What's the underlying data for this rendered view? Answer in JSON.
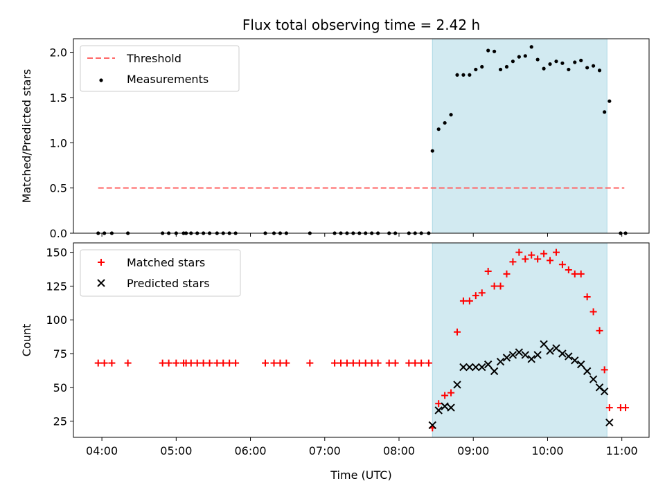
{
  "chart_data": [
    {
      "type": "scatter",
      "title": "Flux total observing time = 2.42 h",
      "xlabel": "",
      "ylabel": "Matched/Predicted stars",
      "xlim": [
        "03:37",
        "11:22"
      ],
      "ylim": [
        0,
        2.15
      ],
      "yticks": [
        0.0,
        0.5,
        1.0,
        1.5,
        2.0
      ],
      "ytick_labels": [
        "0.0",
        "0.5",
        "1.0",
        "1.5",
        "2.0"
      ],
      "shaded_span": {
        "x": [
          "08:27",
          "10:48"
        ],
        "color": "#add8e6"
      },
      "legend": {
        "position": "upper-left"
      },
      "series": [
        {
          "name": "Threshold",
          "kind": "dashed-line",
          "color": "#ff6666",
          "x": [
            "03:57",
            "11:02"
          ],
          "y": [
            0.5,
            0.5
          ]
        },
        {
          "name": "Measurements",
          "kind": "dots",
          "color": "#000000",
          "x": [
            "03:57",
            "04:02",
            "04:08",
            "04:21",
            "04:49",
            "04:54",
            "05:00",
            "05:06",
            "05:08",
            "05:12",
            "05:17",
            "05:22",
            "05:27",
            "05:33",
            "05:38",
            "05:43",
            "05:48",
            "06:12",
            "06:19",
            "06:24",
            "06:29",
            "06:48",
            "07:08",
            "07:13",
            "07:18",
            "07:23",
            "07:28",
            "07:33",
            "07:38",
            "07:43",
            "07:52",
            "07:57",
            "08:08",
            "08:13",
            "08:18",
            "08:24",
            "08:27",
            "08:32",
            "08:37",
            "08:42",
            "08:47",
            "08:52",
            "08:57",
            "09:02",
            "09:07",
            "09:12",
            "09:17",
            "09:22",
            "09:27",
            "09:32",
            "09:37",
            "09:42",
            "09:47",
            "09:52",
            "09:57",
            "10:02",
            "10:07",
            "10:12",
            "10:17",
            "10:22",
            "10:27",
            "10:32",
            "10:37",
            "10:42",
            "10:46",
            "10:50",
            "10:59",
            "11:03"
          ],
          "y": [
            0,
            0,
            0,
            0,
            0,
            0,
            0,
            0,
            0,
            0,
            0,
            0,
            0,
            0,
            0,
            0,
            0,
            0,
            0,
            0,
            0,
            0,
            0,
            0,
            0,
            0,
            0,
            0,
            0,
            0,
            0,
            0,
            0,
            0,
            0,
            0,
            0.91,
            1.15,
            1.22,
            1.31,
            1.75,
            1.75,
            1.75,
            1.81,
            1.84,
            2.02,
            2.01,
            1.81,
            1.84,
            1.9,
            1.95,
            1.96,
            2.06,
            1.92,
            1.82,
            1.87,
            1.9,
            1.88,
            1.81,
            1.89,
            1.91,
            1.83,
            1.85,
            1.8,
            1.34,
            1.46,
            0,
            0
          ]
        }
      ]
    },
    {
      "type": "scatter",
      "title": "",
      "xlabel": "Time (UTC)",
      "ylabel": "Count",
      "xlim": [
        "03:37",
        "11:22"
      ],
      "ylim": [
        13,
        157
      ],
      "yticks": [
        25,
        50,
        75,
        100,
        125,
        150
      ],
      "ytick_labels": [
        "25",
        "50",
        "75",
        "100",
        "125",
        "150"
      ],
      "xticks": [
        "04:00",
        "05:00",
        "06:00",
        "07:00",
        "08:00",
        "09:00",
        "10:00",
        "11:00"
      ],
      "xtick_labels": [
        "04:00",
        "05:00",
        "06:00",
        "07:00",
        "08:00",
        "09:00",
        "10:00",
        "11:00"
      ],
      "shaded_span": {
        "x": [
          "08:27",
          "10:48"
        ],
        "color": "#add8e6"
      },
      "legend": {
        "position": "upper-left"
      },
      "series": [
        {
          "name": "Matched stars",
          "marker": "+",
          "color": "#ff0000",
          "x": [
            "03:57",
            "04:02",
            "04:08",
            "04:21",
            "04:49",
            "04:54",
            "05:00",
            "05:06",
            "05:08",
            "05:12",
            "05:17",
            "05:22",
            "05:27",
            "05:33",
            "05:38",
            "05:43",
            "05:48",
            "06:12",
            "06:19",
            "06:24",
            "06:29",
            "06:48",
            "07:08",
            "07:13",
            "07:18",
            "07:23",
            "07:28",
            "07:33",
            "07:38",
            "07:43",
            "07:52",
            "07:57",
            "08:08",
            "08:13",
            "08:18",
            "08:24",
            "08:27",
            "08:32",
            "08:37",
            "08:42",
            "08:47",
            "08:52",
            "08:57",
            "09:02",
            "09:07",
            "09:12",
            "09:17",
            "09:22",
            "09:27",
            "09:32",
            "09:37",
            "09:42",
            "09:47",
            "09:52",
            "09:57",
            "10:02",
            "10:07",
            "10:12",
            "10:17",
            "10:22",
            "10:27",
            "10:32",
            "10:37",
            "10:42",
            "10:46",
            "10:50",
            "10:59",
            "11:03"
          ],
          "y": [
            68,
            68,
            68,
            68,
            68,
            68,
            68,
            68,
            68,
            68,
            68,
            68,
            68,
            68,
            68,
            68,
            68,
            68,
            68,
            68,
            68,
            68,
            68,
            68,
            68,
            68,
            68,
            68,
            68,
            68,
            68,
            68,
            68,
            68,
            68,
            68,
            20,
            38,
            44,
            46,
            91,
            114,
            114,
            118,
            120,
            136,
            125,
            125,
            134,
            143,
            150,
            145,
            148,
            145,
            149,
            144,
            150,
            141,
            137,
            134,
            134,
            117,
            106,
            92,
            63,
            35,
            35,
            35
          ]
        },
        {
          "name": "Predicted stars",
          "marker": "x",
          "color": "#000000",
          "x": [
            "08:27",
            "08:32",
            "08:37",
            "08:42",
            "08:47",
            "08:52",
            "08:57",
            "09:02",
            "09:07",
            "09:12",
            "09:17",
            "09:22",
            "09:27",
            "09:32",
            "09:37",
            "09:42",
            "09:47",
            "09:52",
            "09:57",
            "10:02",
            "10:07",
            "10:12",
            "10:17",
            "10:22",
            "10:27",
            "10:32",
            "10:37",
            "10:42",
            "10:46",
            "10:50"
          ],
          "y": [
            22,
            33,
            36,
            35,
            52,
            65,
            65,
            65,
            65,
            67,
            62,
            69,
            72,
            74,
            76,
            74,
            71,
            74,
            82,
            77,
            79,
            75,
            73,
            70,
            67,
            62,
            56,
            50,
            47,
            24
          ]
        }
      ]
    }
  ]
}
